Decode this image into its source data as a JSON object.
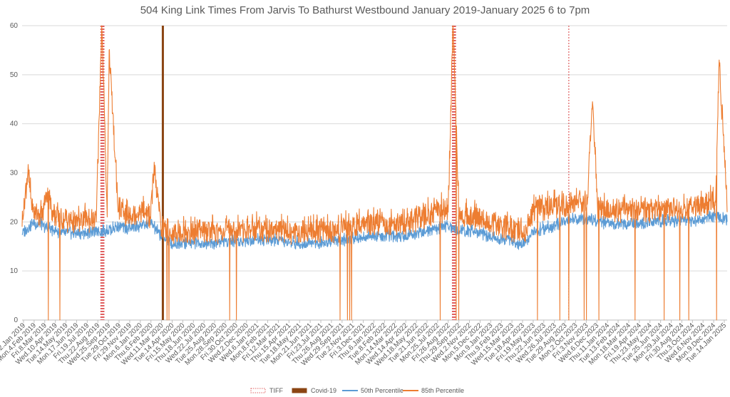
{
  "chart_data": {
    "type": "line",
    "title": "504 King Link Times From Jarvis To Bathurst Westbound January 2019-January 2025 6 to 7pm",
    "xlabel": "",
    "ylabel": "",
    "ylim": [
      0,
      60
    ],
    "yticks": [
      0,
      10,
      20,
      30,
      40,
      50,
      60
    ],
    "grid": true,
    "legend_position": "bottom",
    "x_start": "2019-01-02",
    "x_end": "2025-01-14",
    "x_tick_labels": [
      "Wed.2.Jan 2019",
      "Mon.4.Feb 2019",
      "Fri.8.Mar 2019",
      "Wed.10.Apr 2019",
      "Tue.14.May 2019",
      "Mon.17.Jun 2019",
      "Fri.19.Jul 2019",
      "Thu.22.Aug 2019",
      "Wed.25.Sep 2019",
      "Tue.29.Oct 2019",
      "Fri.29.Nov 2019",
      "Mon.6.Jan 2020",
      "Thu.6.Feb 2020",
      "Wed.11.Mar 2020",
      "Tue.14.Apr 2020",
      "Fri.15.May 2020",
      "Thu.18.Jun 2020",
      "Wed.22.Jul 2020",
      "Tue.25.Aug 2020",
      "Mon.28.Sep 2020",
      "Fri.30.Oct 2020",
      "Wed.2.Dec 2020",
      "Wed.6.Jan 2021",
      "Mon.8.Feb 2021",
      "Fri.12.Mar 2021",
      "Thu.15.Apr 2021",
      "Tue.18.May 2021",
      "Mon.21.Jun 2021",
      "Fri.23.Jul 2021",
      "Thu.26.Aug 2021",
      "Wed.29.Sep 2021",
      "Tue.2.Nov 2021",
      "Fri.3.Dec 2021",
      "Thu.6.Jan 2022",
      "Tue.8.Feb 2022",
      "Mon.14.Mar 2022",
      "Wed.14.Apr 2022",
      "Wed.18.May 2022",
      "Tue.21.Jun 2022",
      "Mon.25.Jul 2022",
      "Fri.26.Aug 2022",
      "Thu.29.Sep 2022",
      "Wed.2.Nov 2022",
      "Mon.5.Dec 2022",
      "Mon.9.Jan 2023",
      "Thu.9.Feb 2023",
      "Wed.15.Mar 2023",
      "Tue.18.Apr 2023",
      "Fri.19.May 2023",
      "Thu.22.Jun 2023",
      "Wed.26.Jul 2023",
      "Tue.29.Aug 2023",
      "Mon.2.Oct 2023",
      "Fri.3.Nov 2023",
      "Wed.6.Dec 2023",
      "Thu.11.Jan 2024",
      "Tue.13.Feb 2024",
      "Mon.18.Mar 2024",
      "Fri.19.Apr 2024",
      "Thu.23.May 2024",
      "Tue.25.Jun 2024",
      "Mon.29.Jul 2024",
      "Fri.30.Aug 2024",
      "Thu.3.Oct 2024",
      "Wed.6.Nov 2024",
      "Mon.9.Dec 2024",
      "Tue.14.Jan 2025"
    ],
    "series": [
      {
        "name": "TIFF",
        "style": "dotted-bar",
        "color": "#e06060",
        "dates": [
          "2019-09-05",
          "2019-09-06",
          "2019-09-07",
          "2019-09-08",
          "2019-09-09",
          "2019-09-10",
          "2019-09-11",
          "2019-09-12",
          "2019-09-13",
          "2019-09-14",
          "2019-09-15",
          "2022-09-08",
          "2022-09-09",
          "2022-09-10",
          "2022-09-11",
          "2022-09-12",
          "2022-09-13",
          "2022-09-14",
          "2022-09-15",
          "2022-09-16",
          "2022-09-17",
          "2022-09-18",
          "2023-09-07"
        ],
        "value": 60
      },
      {
        "name": "Covid-19",
        "style": "bar",
        "color": "#8b4513",
        "dates": [
          "2020-03-17"
        ],
        "value": 60
      },
      {
        "name": "50th Percentile",
        "style": "line",
        "color": "#5b9bd5",
        "x": [
          "2019-01-02",
          "2019-02-04",
          "2019-03-08",
          "2019-04-10",
          "2019-05-14",
          "2019-06-17",
          "2019-07-19",
          "2019-08-22",
          "2019-09-25",
          "2019-10-29",
          "2019-11-29",
          "2020-01-06",
          "2020-02-06",
          "2020-03-11",
          "2020-04-14",
          "2020-05-15",
          "2020-06-18",
          "2020-07-22",
          "2020-08-25",
          "2020-09-28",
          "2020-10-30",
          "2020-12-02",
          "2021-01-06",
          "2021-02-08",
          "2021-03-12",
          "2021-04-15",
          "2021-05-18",
          "2021-06-21",
          "2021-07-23",
          "2021-08-26",
          "2021-09-29",
          "2021-11-02",
          "2021-12-03",
          "2022-01-06",
          "2022-02-08",
          "2022-03-14",
          "2022-04-14",
          "2022-05-18",
          "2022-06-21",
          "2022-07-25",
          "2022-08-26",
          "2022-09-29",
          "2022-11-02",
          "2022-12-05",
          "2023-01-09",
          "2023-02-09",
          "2023-03-15",
          "2023-04-18",
          "2023-05-19",
          "2023-06-22",
          "2023-07-26",
          "2023-08-29",
          "2023-10-02",
          "2023-11-03",
          "2023-12-06",
          "2024-01-11",
          "2024-02-13",
          "2024-03-18",
          "2024-04-19",
          "2024-05-23",
          "2024-06-25",
          "2024-07-29",
          "2024-08-30",
          "2024-10-03",
          "2024-11-06",
          "2024-12-09",
          "2025-01-14"
        ],
        "values": [
          17.5,
          19.5,
          19,
          18,
          17.5,
          17.5,
          17.5,
          18,
          18,
          19,
          18.5,
          19,
          19.5,
          17,
          15.5,
          15.5,
          15.5,
          15.5,
          15.5,
          16,
          16,
          16,
          16.5,
          16,
          16,
          15.5,
          15.5,
          15.5,
          15.5,
          16,
          16,
          16.5,
          16.5,
          17,
          17,
          17,
          17,
          17.5,
          18,
          18.5,
          19,
          18,
          18,
          17.5,
          16.5,
          16.5,
          16,
          15,
          17.5,
          18.5,
          19,
          20,
          20.5,
          20.5,
          20,
          19,
          19.5,
          19.5,
          19.5,
          20,
          20,
          20,
          20,
          20,
          20.5,
          21,
          20
        ]
      },
      {
        "name": "85th Percentile",
        "style": "line",
        "color": "#ed7d31",
        "x": [
          "2019-01-02",
          "2019-01-20",
          "2019-02-04",
          "2019-03-08",
          "2019-03-20",
          "2019-04-10",
          "2019-05-14",
          "2019-06-17",
          "2019-07-19",
          "2019-08-22",
          "2019-09-08",
          "2019-09-25",
          "2019-10-01",
          "2019-10-29",
          "2019-11-29",
          "2020-01-06",
          "2020-02-06",
          "2020-02-20",
          "2020-03-11",
          "2020-04-14",
          "2020-05-15",
          "2020-06-18",
          "2020-07-22",
          "2020-08-25",
          "2020-09-28",
          "2020-10-30",
          "2020-12-02",
          "2021-01-06",
          "2021-02-08",
          "2021-03-12",
          "2021-04-15",
          "2021-05-18",
          "2021-06-21",
          "2021-07-23",
          "2021-08-26",
          "2021-09-29",
          "2021-11-02",
          "2021-12-03",
          "2022-01-06",
          "2022-02-08",
          "2022-03-14",
          "2022-04-14",
          "2022-05-18",
          "2022-06-21",
          "2022-07-25",
          "2022-08-26",
          "2022-09-10",
          "2022-09-29",
          "2022-11-02",
          "2022-12-05",
          "2023-01-09",
          "2023-02-09",
          "2023-03-15",
          "2023-04-18",
          "2023-05-19",
          "2023-06-22",
          "2023-07-26",
          "2023-08-29",
          "2023-10-02",
          "2023-11-03",
          "2023-11-20",
          "2023-12-06",
          "2024-01-11",
          "2024-02-13",
          "2024-03-18",
          "2024-04-19",
          "2024-05-23",
          "2024-06-25",
          "2024-07-29",
          "2024-08-30",
          "2024-10-03",
          "2024-11-06",
          "2024-12-09",
          "2024-12-20",
          "2025-01-14"
        ],
        "values": [
          19,
          30,
          22,
          21,
          26,
          21,
          20,
          19.5,
          20,
          20,
          60,
          21,
          55,
          22,
          21,
          22,
          21,
          29.5,
          19,
          17.5,
          17.5,
          17.5,
          18,
          17.5,
          18,
          18,
          18,
          18.5,
          18,
          18,
          17.5,
          17.5,
          18,
          18,
          18,
          18,
          19,
          19,
          19.5,
          19.5,
          19.5,
          19.5,
          20,
          21,
          22,
          22,
          60,
          21,
          21,
          20.5,
          19,
          19,
          18,
          17,
          22,
          22.5,
          23,
          23,
          23.5,
          23.5,
          44.5,
          22.5,
          22,
          22,
          22,
          22,
          22,
          22.5,
          22.5,
          22.5,
          23,
          23.5,
          24,
          53,
          22
        ],
        "drops_to_zero": [
          "2019-03-25",
          "2019-04-30",
          "2020-03-30",
          "2020-04-05",
          "2020-10-12",
          "2020-11-02",
          "2021-09-22",
          "2021-10-15",
          "2021-10-22",
          "2021-10-28",
          "2022-08-01",
          "2022-09-20",
          "2022-09-28",
          "2023-06-01",
          "2023-08-10",
          "2023-09-07",
          "2023-10-25",
          "2023-11-01",
          "2023-12-10",
          "2024-04-01",
          "2024-07-01",
          "2024-08-19",
          "2024-09-16",
          "2024-12-12"
        ]
      }
    ]
  }
}
